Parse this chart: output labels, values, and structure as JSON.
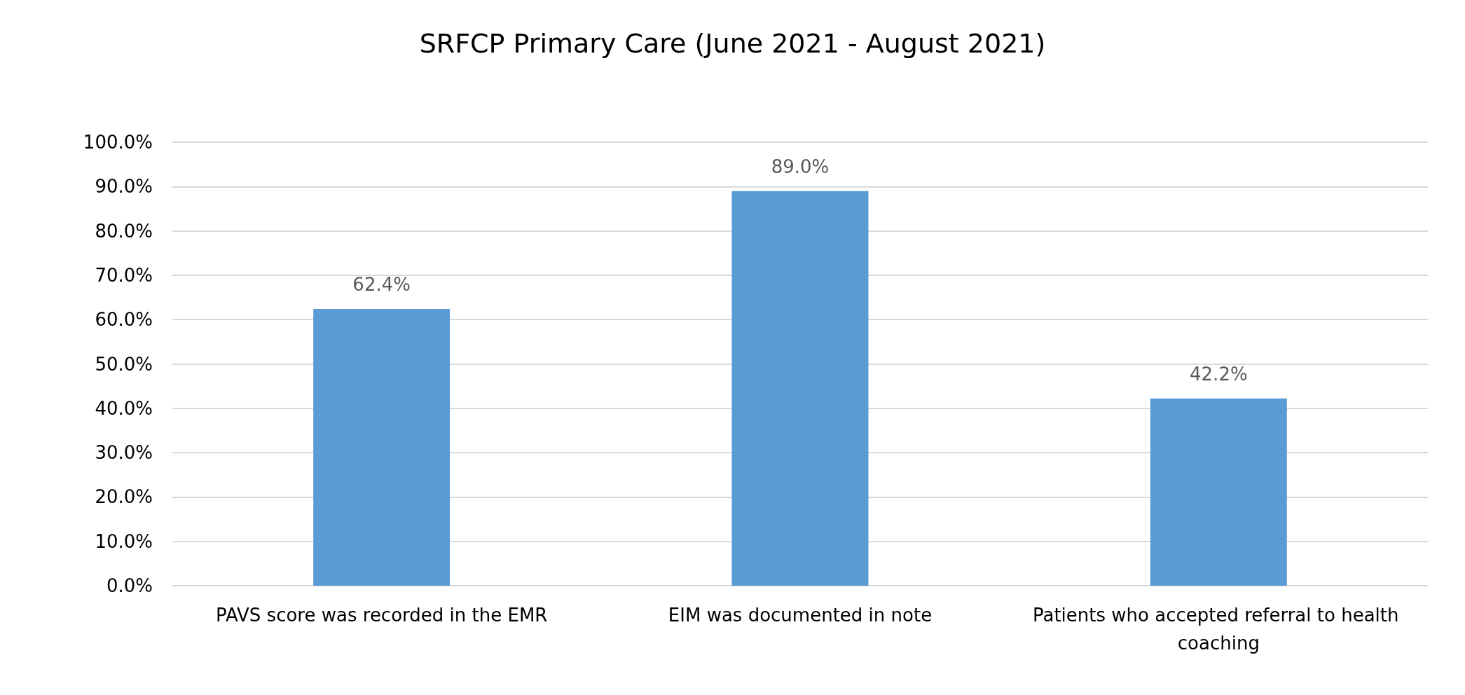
{
  "chart_data": {
    "type": "bar",
    "title": "SRFCP Primary Care (June 2021 - August 2021)",
    "categories": [
      "PAVS score was recorded in the EMR",
      "EIM was documented in note",
      "Patients who accepted referral to health coaching"
    ],
    "values": [
      62.4,
      89.0,
      42.2
    ],
    "color": "#5b9bd5",
    "value_labels": [
      "62.4%",
      "89.0%",
      "42.2%"
    ],
    "ylim": [
      0,
      100
    ],
    "yticks": [
      {
        "value": 0,
        "label": "0.0%"
      },
      {
        "value": 10,
        "label": "10.0%"
      },
      {
        "value": 20,
        "label": "20.0%"
      },
      {
        "value": 30,
        "label": "30.0%"
      },
      {
        "value": 40,
        "label": "40.0%"
      },
      {
        "value": 50,
        "label": "50.0%"
      },
      {
        "value": 60,
        "label": "60.0%"
      },
      {
        "value": 70,
        "label": "70.0%"
      },
      {
        "value": 80,
        "label": "80.0%"
      },
      {
        "value": 90,
        "label": "90.0%"
      },
      {
        "value": 100,
        "label": "100.0%"
      }
    ],
    "grid": true
  }
}
